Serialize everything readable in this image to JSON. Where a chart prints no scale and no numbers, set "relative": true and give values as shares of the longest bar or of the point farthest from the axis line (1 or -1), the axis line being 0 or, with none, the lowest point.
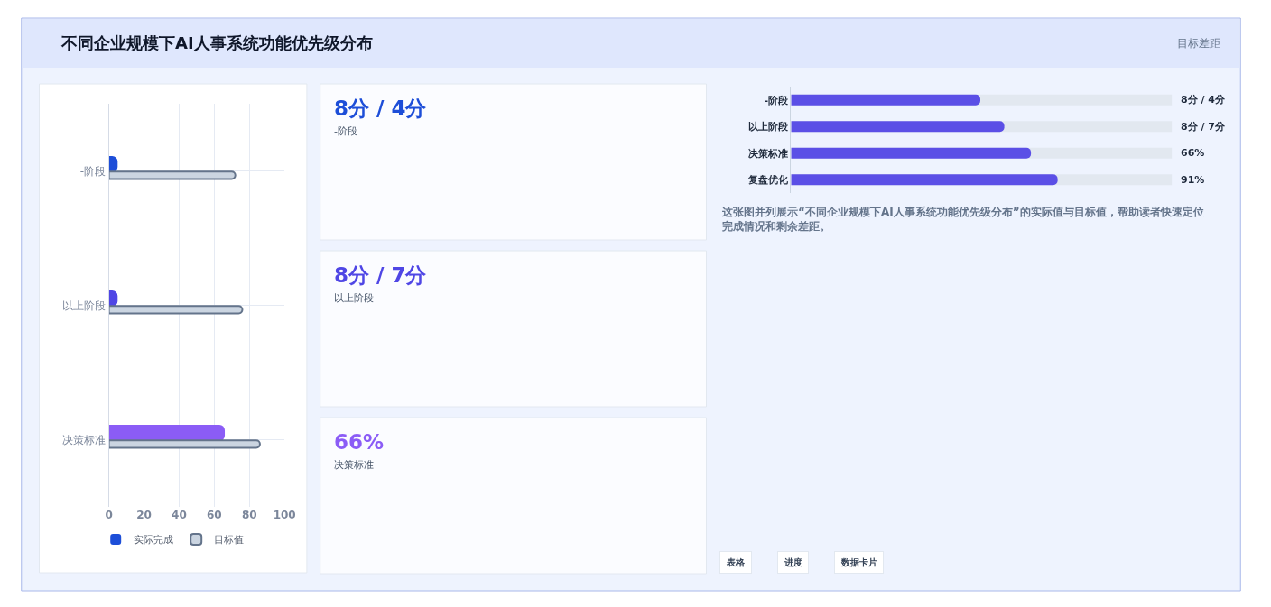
{
  "chart_data": [
    {
      "type": "bar",
      "orientation": "horizontal",
      "title": "不同企业规模下AI人事系统功能优先级分布",
      "annotations": [
        "目标差距"
      ],
      "categories": [
        "-阶段",
        "以上阶段",
        "决策标准"
      ],
      "series": [
        {
          "name": "实际完成",
          "colors": [
            "#1d4ed8",
            "#4f46e5",
            "#8b5cf6"
          ],
          "values": [
            5,
            5,
            66
          ]
        },
        {
          "name": "目标值",
          "color": "#cbd5e1",
          "values": [
            72,
            76,
            86
          ]
        }
      ],
      "xlim": [
        0,
        100
      ],
      "xticks": [
        0,
        20,
        40,
        60,
        80,
        100
      ],
      "grid": true,
      "legend": "bottom"
    },
    {
      "type": "other",
      "title": "8分 / 4分",
      "subtitle": "-阶段",
      "color": "#1d4ed8"
    },
    {
      "type": "other",
      "title": "8分 / 7分",
      "subtitle": "以上阶段",
      "color": "#4f46e5"
    },
    {
      "type": "other",
      "title": "66%",
      "subtitle": "决策标准",
      "color": "#8b5cf6"
    },
    {
      "type": "bar",
      "orientation": "horizontal",
      "relative": true,
      "categories": [
        "-阶段",
        "以上阶段",
        "决策标准",
        "复盘优化"
      ],
      "values": [
        0.71,
        0.8,
        0.9,
        1
      ],
      "color": "#5b4fe6",
      "annotations": [
        "8分 / 4分",
        "8分 / 7分",
        "66%",
        "91%",
        "这张图并列展示“不同企业规模下AI人事系统功能优先级分布”的实际值与目标值，帮助读者快速定位完成情况和剩余差距。",
        "表格",
        "进度",
        "数据卡片"
      ]
    }
  ]
}
